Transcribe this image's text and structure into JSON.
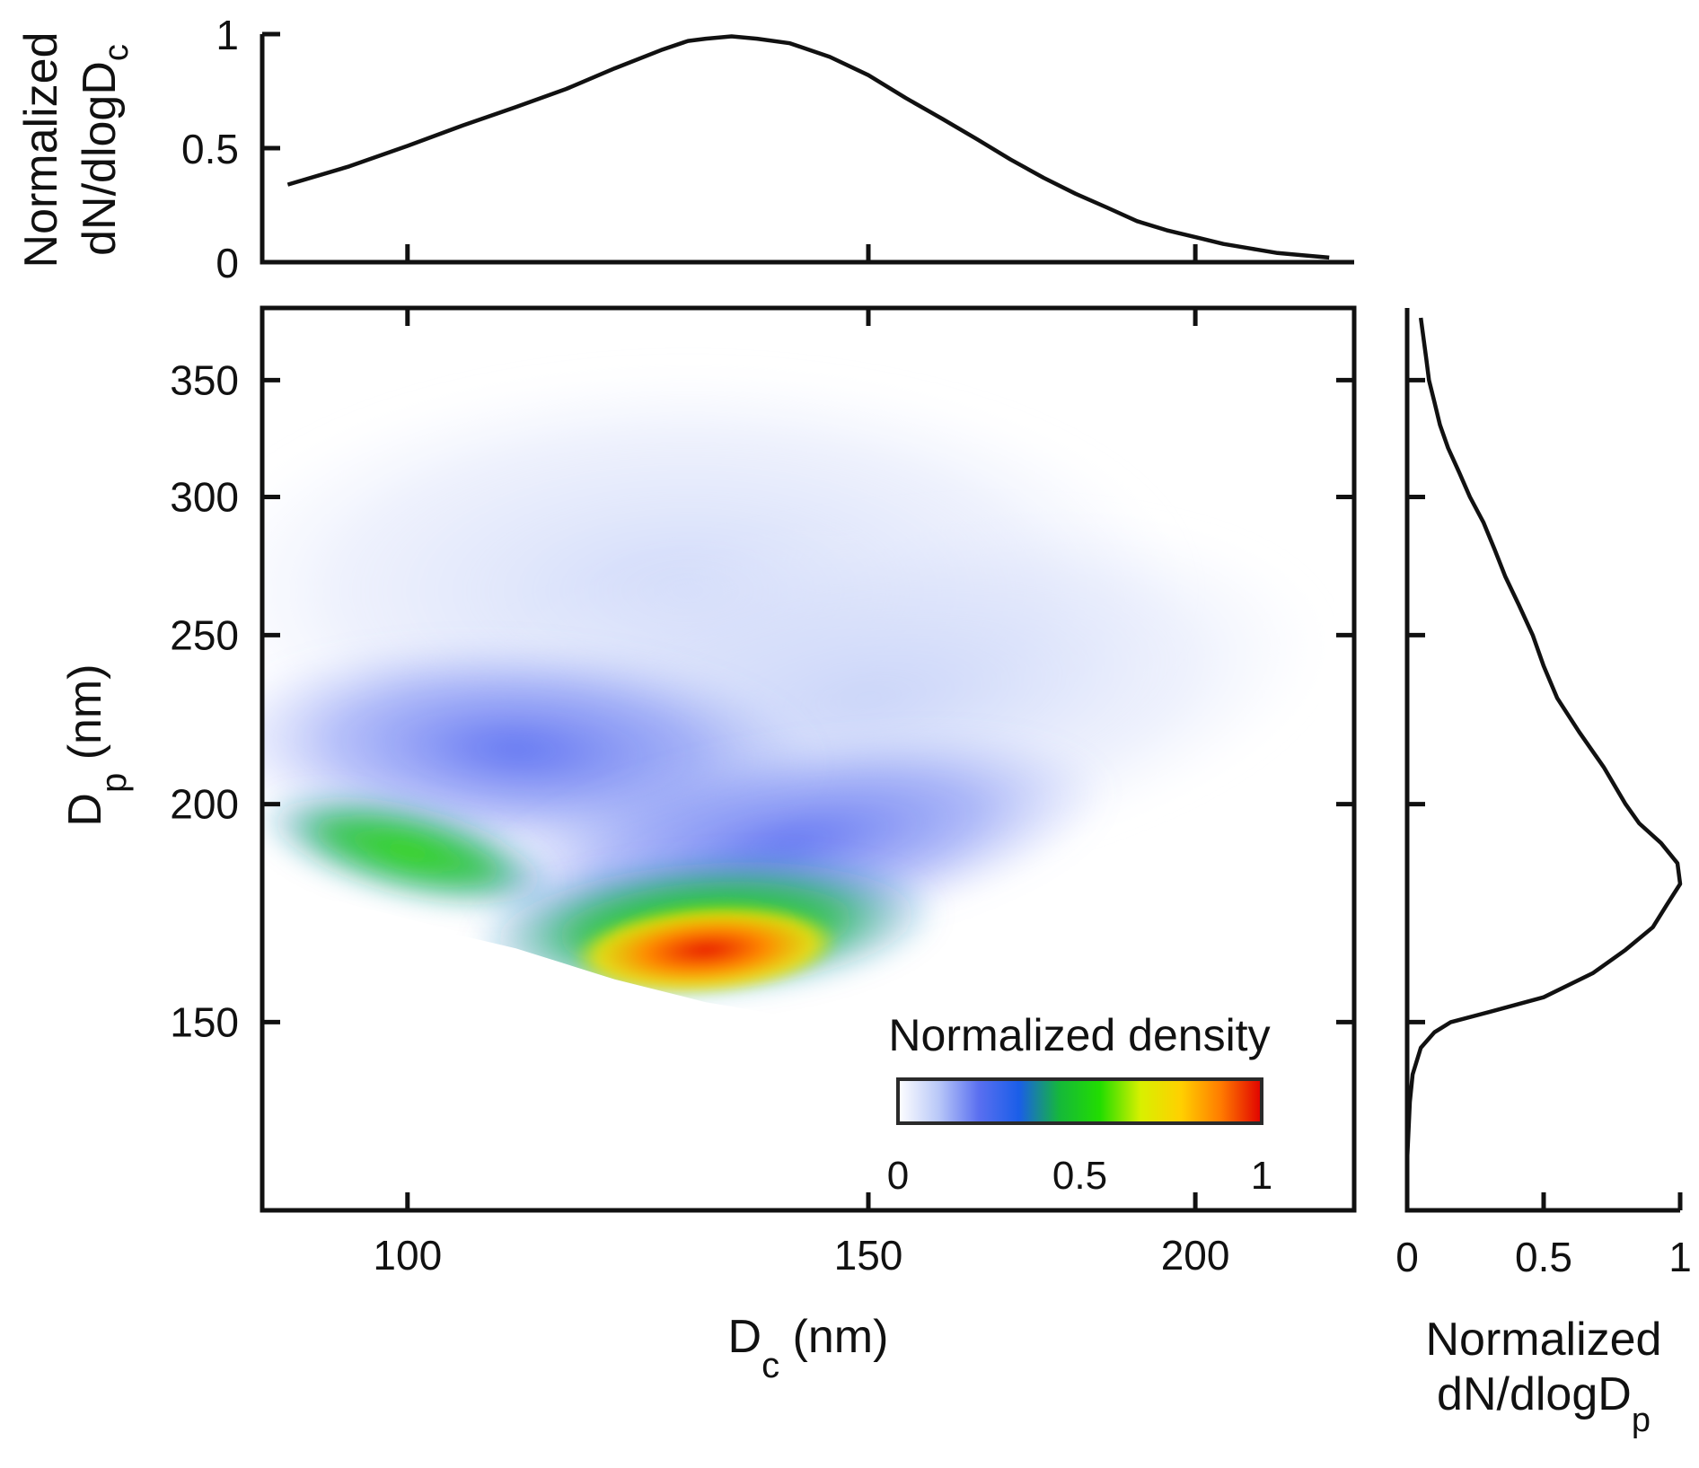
{
  "chart_data": [
    {
      "id": "main",
      "type": "heatmap",
      "title": "",
      "xlabel": {
        "main": "D",
        "sub": "c",
        "unit": " (nm)"
      },
      "ylabel": {
        "main": "D",
        "sub": "p",
        "unit": " (nm)"
      },
      "xscale": "log",
      "yscale": "log",
      "xlim": [
        88,
        230
      ],
      "ylim": [
        117,
        385
      ],
      "xticks": [
        100,
        150,
        200
      ],
      "yticks": [
        150,
        200,
        250,
        300,
        350
      ],
      "grid": false,
      "density": {
        "ridge_dc": [
          92,
          100,
          110,
          120,
          130,
          140,
          150,
          160,
          170,
          180,
          190,
          200,
          210,
          220
        ],
        "ridge_dp": [
          186,
          181,
          175,
          168,
          163,
          160,
          162,
          168,
          175,
          183,
          192,
          202,
          213,
          225
        ],
        "peak": {
          "dc": 130,
          "dp": 165
        },
        "upper_boundary_dp": 380
      },
      "colorbar": {
        "title": "Normalized density",
        "range": [
          0,
          1
        ],
        "ticks": [
          "0",
          "0.5",
          "1"
        ],
        "colormap": [
          "#ffffff",
          "#b9c8f8",
          "#5a6ff0",
          "#1a5ee8",
          "#15b83a",
          "#22dd00",
          "#d8f000",
          "#ffd000",
          "#ff7a00",
          "#e00000"
        ],
        "location": "bottom-right"
      }
    },
    {
      "id": "top-marginal",
      "type": "line",
      "title": "",
      "ylabel": {
        "line1": "Normalized",
        "line2_main": "dN/dlogD",
        "line2_sub": "c"
      },
      "xlim": [
        88,
        230
      ],
      "ylim": [
        0,
        1
      ],
      "yticks": [
        "0",
        "0.5",
        "1"
      ],
      "x": [
        90,
        95,
        100,
        105,
        110,
        115,
        120,
        125,
        128,
        130,
        133,
        136,
        140,
        145,
        150,
        155,
        160,
        165,
        170,
        175,
        180,
        185,
        190,
        195,
        200,
        205,
        210,
        215,
        220,
        225
      ],
      "y": [
        0.34,
        0.42,
        0.51,
        0.6,
        0.68,
        0.76,
        0.85,
        0.93,
        0.97,
        0.98,
        0.99,
        0.98,
        0.96,
        0.9,
        0.82,
        0.72,
        0.63,
        0.54,
        0.45,
        0.37,
        0.3,
        0.24,
        0.18,
        0.14,
        0.11,
        0.08,
        0.06,
        0.04,
        0.03,
        0.02
      ]
    },
    {
      "id": "right-marginal",
      "type": "line",
      "title": "",
      "xlabel": {
        "line1": "Normalized",
        "line2_main": "dN/dlogD",
        "line2_sub": "p"
      },
      "xlim": [
        0,
        1
      ],
      "xticks": [
        "0",
        "0.5",
        "1"
      ],
      "dp": [
        117,
        125,
        135,
        140,
        145,
        148,
        150,
        152,
        155,
        160,
        165,
        170,
        175,
        180,
        185,
        190,
        195,
        200,
        210,
        220,
        230,
        240,
        250,
        260,
        270,
        280,
        290,
        300,
        310,
        320,
        330,
        340,
        350,
        360,
        370,
        380
      ],
      "value": [
        0.0,
        0.0,
        0.01,
        0.02,
        0.05,
        0.1,
        0.16,
        0.3,
        0.5,
        0.68,
        0.8,
        0.9,
        0.95,
        1.0,
        0.99,
        0.93,
        0.85,
        0.8,
        0.72,
        0.63,
        0.55,
        0.5,
        0.46,
        0.41,
        0.36,
        0.32,
        0.28,
        0.23,
        0.19,
        0.15,
        0.12,
        0.1,
        0.08,
        0.07,
        0.06,
        0.05
      ]
    }
  ]
}
